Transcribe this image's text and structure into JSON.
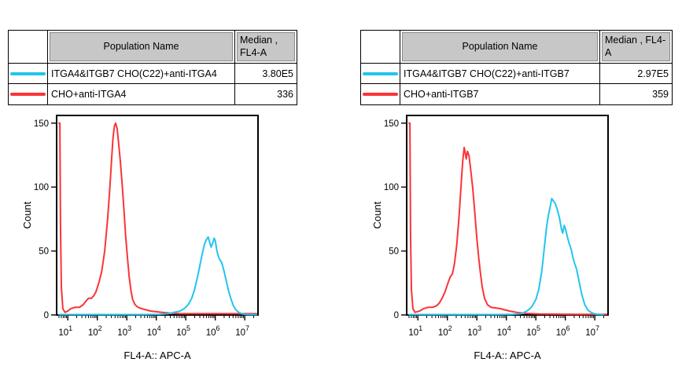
{
  "colors": {
    "cyan": "#23c4f0",
    "red": "#fa3437",
    "header_bg": "#c7c7c7"
  },
  "panels": [
    {
      "table": {
        "header": {
          "swatch": "",
          "population": "Population Name",
          "median": "Median ,\nFL4-A"
        },
        "rows": [
          {
            "color": "#23c4f0",
            "name": "ITGA4&ITGB7 CHO(C22)+anti-ITGA4",
            "median": "3.80E5"
          },
          {
            "color": "#fa3437",
            "name": "CHO+anti-ITGA4",
            "median": "336"
          }
        ]
      }
    },
    {
      "table": {
        "header": {
          "swatch": "",
          "population": "Population Name",
          "median": "Median , FL4-A"
        },
        "rows": [
          {
            "color": "#23c4f0",
            "name": "ITGA4&ITGB7 CHO(C22)+anti-ITGB7",
            "median": "2.97E5"
          },
          {
            "color": "#fa3437",
            "name": "CHO+anti-ITGB7",
            "median": "359"
          }
        ]
      }
    }
  ],
  "chart_data": [
    {
      "type": "line",
      "subtype": "flow-cytometry-histogram-overlay",
      "xlabel": "FL4-A:: APC-A",
      "ylabel": "Count",
      "x_scale": "log10",
      "x_encoding": "points are [log10(x), count]",
      "x_range_log10": [
        0.62,
        7.45
      ],
      "ylim": [
        0,
        156
      ],
      "yticks": [
        0,
        50,
        100,
        150
      ],
      "xticks_log10": [
        1,
        2,
        3,
        4,
        5,
        6,
        7
      ],
      "grid": false,
      "legend": "external table above plot",
      "series": [
        {
          "name": "CHO+anti-ITGA4",
          "color": "#fa3437",
          "median_fl4a": "336",
          "points": [
            [
              0.7,
              150
            ],
            [
              0.73,
              150
            ],
            [
              0.75,
              70
            ],
            [
              0.78,
              22
            ],
            [
              0.83,
              5
            ],
            [
              0.9,
              2
            ],
            [
              1.0,
              3
            ],
            [
              1.1,
              5
            ],
            [
              1.25,
              6
            ],
            [
              1.4,
              6
            ],
            [
              1.52,
              8
            ],
            [
              1.62,
              11
            ],
            [
              1.7,
              13
            ],
            [
              1.8,
              13
            ],
            [
              1.88,
              15
            ],
            [
              1.95,
              18
            ],
            [
              2.05,
              25
            ],
            [
              2.15,
              34
            ],
            [
              2.25,
              50
            ],
            [
              2.35,
              75
            ],
            [
              2.42,
              98
            ],
            [
              2.48,
              120
            ],
            [
              2.53,
              138
            ],
            [
              2.58,
              148
            ],
            [
              2.62,
              150
            ],
            [
              2.67,
              146
            ],
            [
              2.72,
              135
            ],
            [
              2.78,
              120
            ],
            [
              2.84,
              103
            ],
            [
              2.9,
              83
            ],
            [
              2.96,
              62
            ],
            [
              3.02,
              45
            ],
            [
              3.08,
              30
            ],
            [
              3.14,
              19
            ],
            [
              3.2,
              12
            ],
            [
              3.28,
              8
            ],
            [
              3.38,
              6
            ],
            [
              3.5,
              5
            ],
            [
              3.65,
              4
            ],
            [
              3.82,
              3
            ],
            [
              4.0,
              2.5
            ],
            [
              4.2,
              2
            ],
            [
              4.45,
              1.5
            ],
            [
              4.8,
              1
            ],
            [
              5.3,
              1
            ],
            [
              6.0,
              1
            ],
            [
              6.7,
              1
            ],
            [
              7.4,
              1
            ]
          ]
        },
        {
          "name": "ITGA4&ITGB7 CHO(C22)+anti-ITGA4",
          "color": "#23c4f0",
          "median_fl4a": "3.80E5",
          "points": [
            [
              0.7,
              0.3
            ],
            [
              2.0,
              0.3
            ],
            [
              3.5,
              0.3
            ],
            [
              4.1,
              0.5
            ],
            [
              4.4,
              1
            ],
            [
              4.6,
              2
            ],
            [
              4.8,
              3
            ],
            [
              4.95,
              5
            ],
            [
              5.08,
              8
            ],
            [
              5.2,
              13
            ],
            [
              5.3,
              20
            ],
            [
              5.4,
              30
            ],
            [
              5.48,
              39
            ],
            [
              5.56,
              48
            ],
            [
              5.63,
              55
            ],
            [
              5.7,
              59
            ],
            [
              5.76,
              61
            ],
            [
              5.81,
              57
            ],
            [
              5.86,
              53
            ],
            [
              5.91,
              56
            ],
            [
              5.96,
              60
            ],
            [
              6.0,
              58
            ],
            [
              6.05,
              51
            ],
            [
              6.1,
              46
            ],
            [
              6.16,
              43
            ],
            [
              6.22,
              41
            ],
            [
              6.3,
              34
            ],
            [
              6.38,
              26
            ],
            [
              6.46,
              18
            ],
            [
              6.54,
              12
            ],
            [
              6.62,
              7
            ],
            [
              6.7,
              4
            ],
            [
              6.8,
              2
            ],
            [
              6.9,
              1
            ],
            [
              7.0,
              0.5
            ],
            [
              7.2,
              0.3
            ],
            [
              7.4,
              0.3
            ]
          ]
        }
      ]
    },
    {
      "type": "line",
      "subtype": "flow-cytometry-histogram-overlay",
      "xlabel": "FL4-A:: APC-A",
      "ylabel": "Count",
      "x_scale": "log10",
      "x_encoding": "points are [log10(x), count]",
      "x_range_log10": [
        0.62,
        7.45
      ],
      "ylim": [
        0,
        156
      ],
      "yticks": [
        0,
        50,
        100,
        150
      ],
      "xticks_log10": [
        1,
        2,
        3,
        4,
        5,
        6,
        7
      ],
      "grid": false,
      "legend": "external table above plot",
      "series": [
        {
          "name": "CHO+anti-ITGB7",
          "color": "#fa3437",
          "median_fl4a": "359",
          "points": [
            [
              0.7,
              150
            ],
            [
              0.73,
              150
            ],
            [
              0.75,
              65
            ],
            [
              0.78,
              20
            ],
            [
              0.83,
              5
            ],
            [
              0.9,
              2
            ],
            [
              1.05,
              3
            ],
            [
              1.2,
              5
            ],
            [
              1.35,
              6
            ],
            [
              1.5,
              6
            ],
            [
              1.62,
              7
            ],
            [
              1.72,
              9
            ],
            [
              1.82,
              13
            ],
            [
              1.92,
              18
            ],
            [
              2.02,
              25
            ],
            [
              2.1,
              30
            ],
            [
              2.17,
              32
            ],
            [
              2.24,
              40
            ],
            [
              2.32,
              55
            ],
            [
              2.4,
              78
            ],
            [
              2.46,
              100
            ],
            [
              2.52,
              120
            ],
            [
              2.57,
              131
            ],
            [
              2.61,
              126
            ],
            [
              2.64,
              122
            ],
            [
              2.68,
              128
            ],
            [
              2.73,
              125
            ],
            [
              2.79,
              114
            ],
            [
              2.86,
              99
            ],
            [
              2.93,
              80
            ],
            [
              3.0,
              60
            ],
            [
              3.06,
              45
            ],
            [
              3.12,
              33
            ],
            [
              3.18,
              22
            ],
            [
              3.26,
              13
            ],
            [
              3.36,
              8
            ],
            [
              3.48,
              6
            ],
            [
              3.62,
              5.5
            ],
            [
              3.78,
              5
            ],
            [
              3.95,
              4
            ],
            [
              4.12,
              3
            ],
            [
              4.35,
              2
            ],
            [
              4.65,
              1.2
            ],
            [
              5.1,
              0.8
            ],
            [
              5.7,
              0.6
            ],
            [
              6.4,
              0.5
            ],
            [
              7.0,
              0.5
            ],
            [
              7.4,
              0.5
            ]
          ]
        },
        {
          "name": "ITGA4&ITGB7 CHO(C22)+anti-ITGB7",
          "color": "#23c4f0",
          "median_fl4a": "2.97E5",
          "points": [
            [
              0.7,
              0.3
            ],
            [
              2.5,
              0.3
            ],
            [
              3.8,
              0.3
            ],
            [
              4.2,
              0.5
            ],
            [
              4.5,
              1
            ],
            [
              4.7,
              3
            ],
            [
              4.85,
              6
            ],
            [
              5.0,
              12
            ],
            [
              5.1,
              20
            ],
            [
              5.2,
              34
            ],
            [
              5.3,
              55
            ],
            [
              5.36,
              68
            ],
            [
              5.42,
              77
            ],
            [
              5.48,
              84
            ],
            [
              5.54,
              91
            ],
            [
              5.6,
              89
            ],
            [
              5.66,
              87
            ],
            [
              5.72,
              83
            ],
            [
              5.8,
              76
            ],
            [
              5.87,
              67
            ],
            [
              5.91,
              64
            ],
            [
              5.96,
              70
            ],
            [
              6.01,
              67
            ],
            [
              6.07,
              61
            ],
            [
              6.13,
              56
            ],
            [
              6.19,
              52
            ],
            [
              6.26,
              45
            ],
            [
              6.32,
              40
            ],
            [
              6.38,
              36
            ],
            [
              6.46,
              27
            ],
            [
              6.56,
              16
            ],
            [
              6.66,
              8
            ],
            [
              6.76,
              4
            ],
            [
              6.87,
              2
            ],
            [
              6.97,
              1
            ],
            [
              7.1,
              0.4
            ],
            [
              7.3,
              0.3
            ]
          ]
        }
      ]
    }
  ]
}
